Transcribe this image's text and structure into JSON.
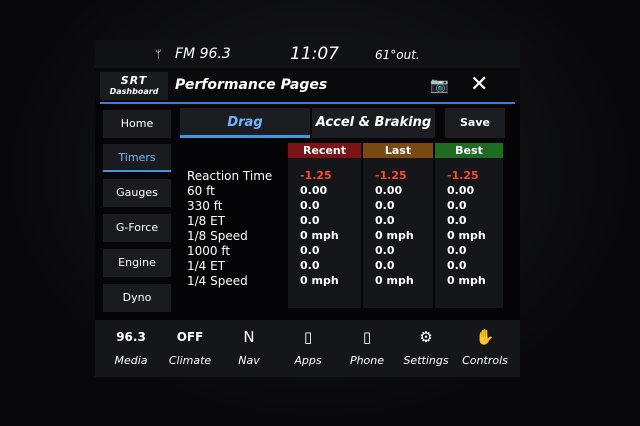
{
  "status": {
    "radio": "FM 96.3",
    "time": "11:07",
    "temp": "61°out."
  },
  "header": {
    "logo_top": "SRT",
    "logo_bottom": "Dashboard",
    "title": "Performance Pages",
    "camera_icon": "camera-icon",
    "close_icon": "close-icon"
  },
  "sidebar": {
    "items": [
      {
        "label": "Home"
      },
      {
        "label": "Timers",
        "active": true
      },
      {
        "label": "Gauges"
      },
      {
        "label": "G-Force"
      },
      {
        "label": "Engine"
      },
      {
        "label": "Dyno"
      }
    ]
  },
  "tabs": [
    {
      "label": "Drag",
      "active": true
    },
    {
      "label": "Accel & Braking"
    }
  ],
  "save_label": "Save",
  "table": {
    "columns": [
      {
        "label": "Recent",
        "color": "#7a1416"
      },
      {
        "label": "Last",
        "color": "#7a4a12"
      },
      {
        "label": "Best",
        "color": "#1f6b22"
      }
    ],
    "rows": [
      "Reaction Time",
      "60 ft",
      "330 ft",
      "1/8 ET",
      "1/8 Speed",
      "1000 ft",
      "1/4 ET",
      "1/4 Speed"
    ],
    "values": [
      [
        "-1.25",
        "0.00",
        "0.0",
        "0.0",
        "0 mph",
        "0.0",
        "0.0",
        "0 mph"
      ],
      [
        "-1.25",
        "0.00",
        "0.0",
        "0.0",
        "0 mph",
        "0.0",
        "0.0",
        "0 mph"
      ],
      [
        "-1.25",
        "0.00",
        "0.0",
        "0.0",
        "0 mph",
        "0.0",
        "0.0",
        "0 mph"
      ]
    ],
    "highlight_color": "#ff4a2a"
  },
  "bottom": [
    {
      "top": "96.3",
      "label": "Media"
    },
    {
      "top": "OFF",
      "label": "Climate"
    },
    {
      "top": "N",
      "label": "Nav"
    },
    {
      "top": "▯",
      "label": "Apps"
    },
    {
      "top": "▯",
      "label": "Phone"
    },
    {
      "top": "⚙",
      "label": "Settings"
    },
    {
      "top": "✋",
      "label": "Controls"
    }
  ]
}
